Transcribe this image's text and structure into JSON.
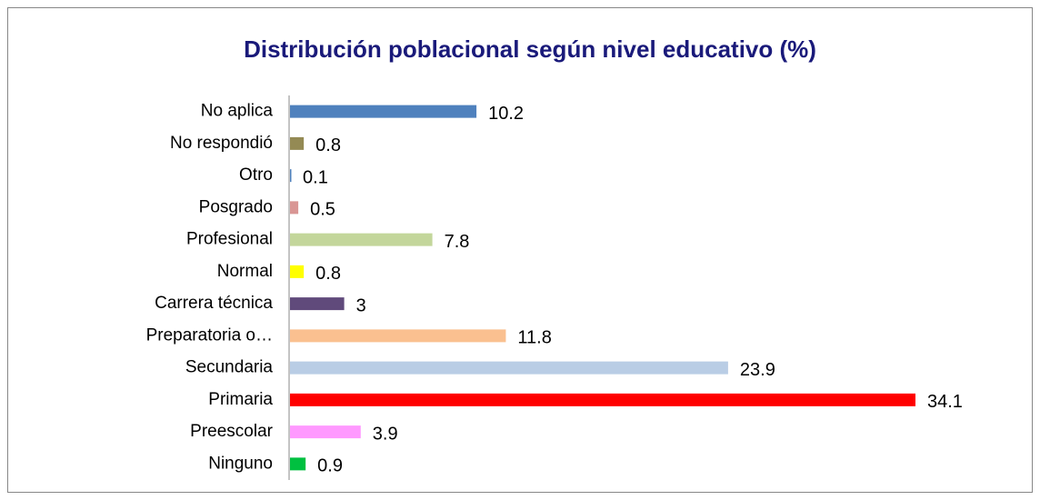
{
  "chart_data": {
    "type": "barh",
    "title": "Distribución poblacional según nivel educativo (%)",
    "categories": [
      "No aplica",
      "No respondió",
      "Otro",
      "Posgrado",
      "Profesional",
      "Normal",
      "Carrera técnica",
      "Preparatoria o…",
      "Secundaria",
      "Primaria",
      "Preescolar",
      "Ninguno"
    ],
    "values": [
      10.2,
      0.8,
      0.1,
      0.5,
      7.8,
      0.8,
      3,
      11.8,
      23.9,
      34.1,
      3.9,
      0.9
    ],
    "colors": [
      "#4f81bd",
      "#948a54",
      "#4f81bd",
      "#d99694",
      "#c3d69b",
      "#ffff00",
      "#604a7b",
      "#fac090",
      "#b9cde5",
      "#ff0000",
      "#ff99ff",
      "#00c040"
    ]
  }
}
